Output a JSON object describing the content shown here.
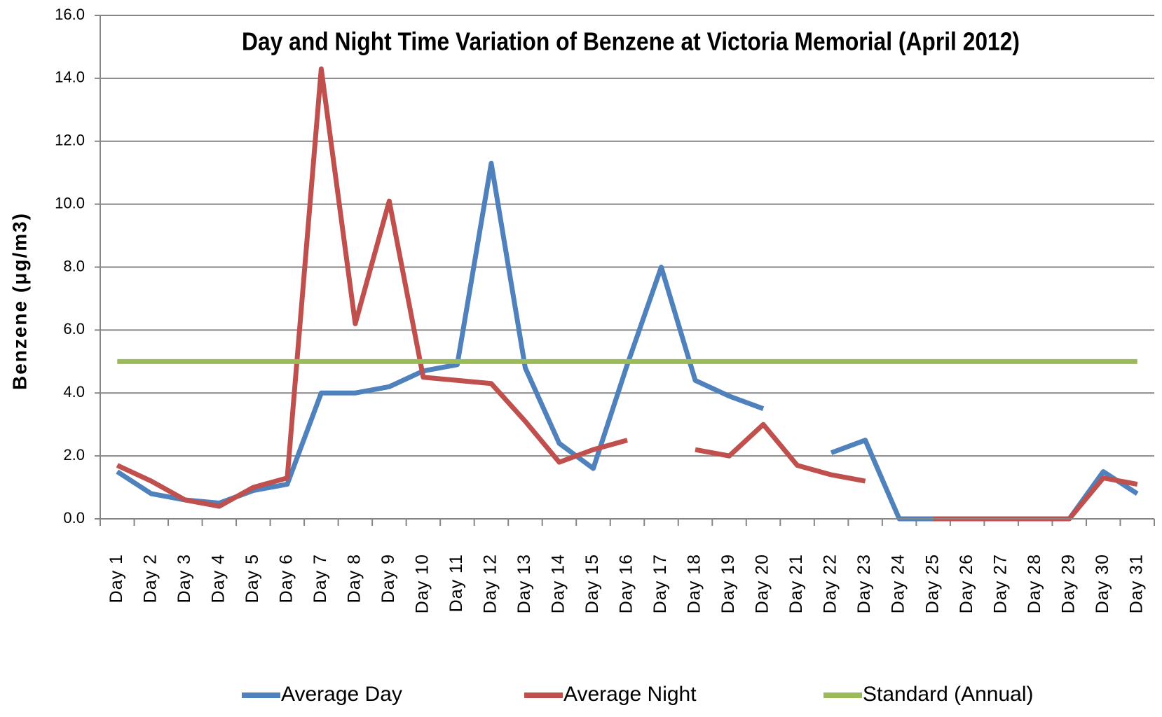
{
  "chart_data": {
    "type": "line",
    "title": "Day and Night Time Variation of Benzene at Victoria Memorial (April 2012)",
    "y_label": "Benzene (μg/m3)",
    "categories": [
      "Day 1",
      "Day 2",
      "Day 3",
      "Day 4",
      "Day 5",
      "Day 6",
      "Day 7",
      "Day 8",
      "Day 9",
      "Day 10",
      "Day 11",
      "Day 12",
      "Day 13",
      "Day 14",
      "Day 15",
      "Day 16",
      "Day 17",
      "Day 18",
      "Day 19",
      "Day 20",
      "Day 21",
      "Day 22",
      "Day 23",
      "Day 24",
      "Day 25",
      "Day 26",
      "Day 27",
      "Day 28",
      "Day 29",
      "Day 30",
      "Day 31"
    ],
    "series": [
      {
        "name": "Average Day",
        "color": "#4f81bd",
        "values": [
          1.5,
          0.8,
          0.6,
          0.5,
          0.9,
          1.1,
          4.0,
          4.0,
          4.2,
          4.7,
          4.9,
          11.3,
          4.8,
          2.4,
          1.6,
          4.9,
          8.0,
          4.4,
          3.9,
          3.5,
          null,
          2.1,
          2.5,
          0,
          0,
          0,
          0,
          0,
          0,
          1.5,
          0.8
        ]
      },
      {
        "name": "Average Night",
        "color": "#c0504d",
        "values": [
          1.7,
          1.2,
          0.6,
          0.4,
          1.0,
          1.3,
          14.3,
          6.2,
          10.1,
          4.5,
          4.4,
          4.3,
          3.1,
          1.8,
          2.2,
          2.5,
          null,
          2.2,
          2.0,
          3.0,
          1.7,
          1.4,
          1.2,
          null,
          0,
          0,
          0,
          0,
          0,
          1.3,
          1.1
        ]
      },
      {
        "name": "Standard (Annual)",
        "color": "#9bbb59",
        "values": [
          5,
          5,
          5,
          5,
          5,
          5,
          5,
          5,
          5,
          5,
          5,
          5,
          5,
          5,
          5,
          5,
          5,
          5,
          5,
          5,
          5,
          5,
          5,
          5,
          5,
          5,
          5,
          5,
          5,
          5,
          5
        ]
      }
    ],
    "ylim": [
      0,
      16
    ],
    "yticks": [
      {
        "value": 0,
        "label": "0.0"
      },
      {
        "value": 2,
        "label": "2.0"
      },
      {
        "value": 4,
        "label": "4.0"
      },
      {
        "value": 6,
        "label": "6.0"
      },
      {
        "value": 8,
        "label": "8.0"
      },
      {
        "value": 10,
        "label": "10.0"
      },
      {
        "value": 12,
        "label": "12.0"
      },
      {
        "value": 14,
        "label": "14.0"
      },
      {
        "value": 16,
        "label": "16.0"
      }
    ],
    "grid": true,
    "legend": "bottom"
  }
}
